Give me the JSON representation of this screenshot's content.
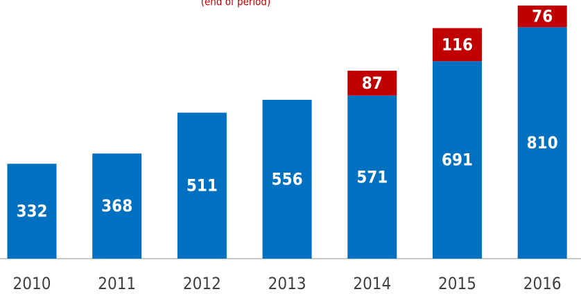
{
  "chart_data": {
    "type": "stacked_bar",
    "subtitle": "(end of period)",
    "categories": [
      "2010",
      "2011",
      "2012",
      "2013",
      "2014",
      "2015",
      "2016"
    ],
    "series": [
      {
        "color": "#0070c0",
        "values": [
          332,
          368,
          511,
          556,
          571,
          691,
          810
        ]
      },
      {
        "color": "#c00000",
        "values": [
          null,
          null,
          null,
          null,
          87,
          116,
          76
        ]
      }
    ]
  }
}
